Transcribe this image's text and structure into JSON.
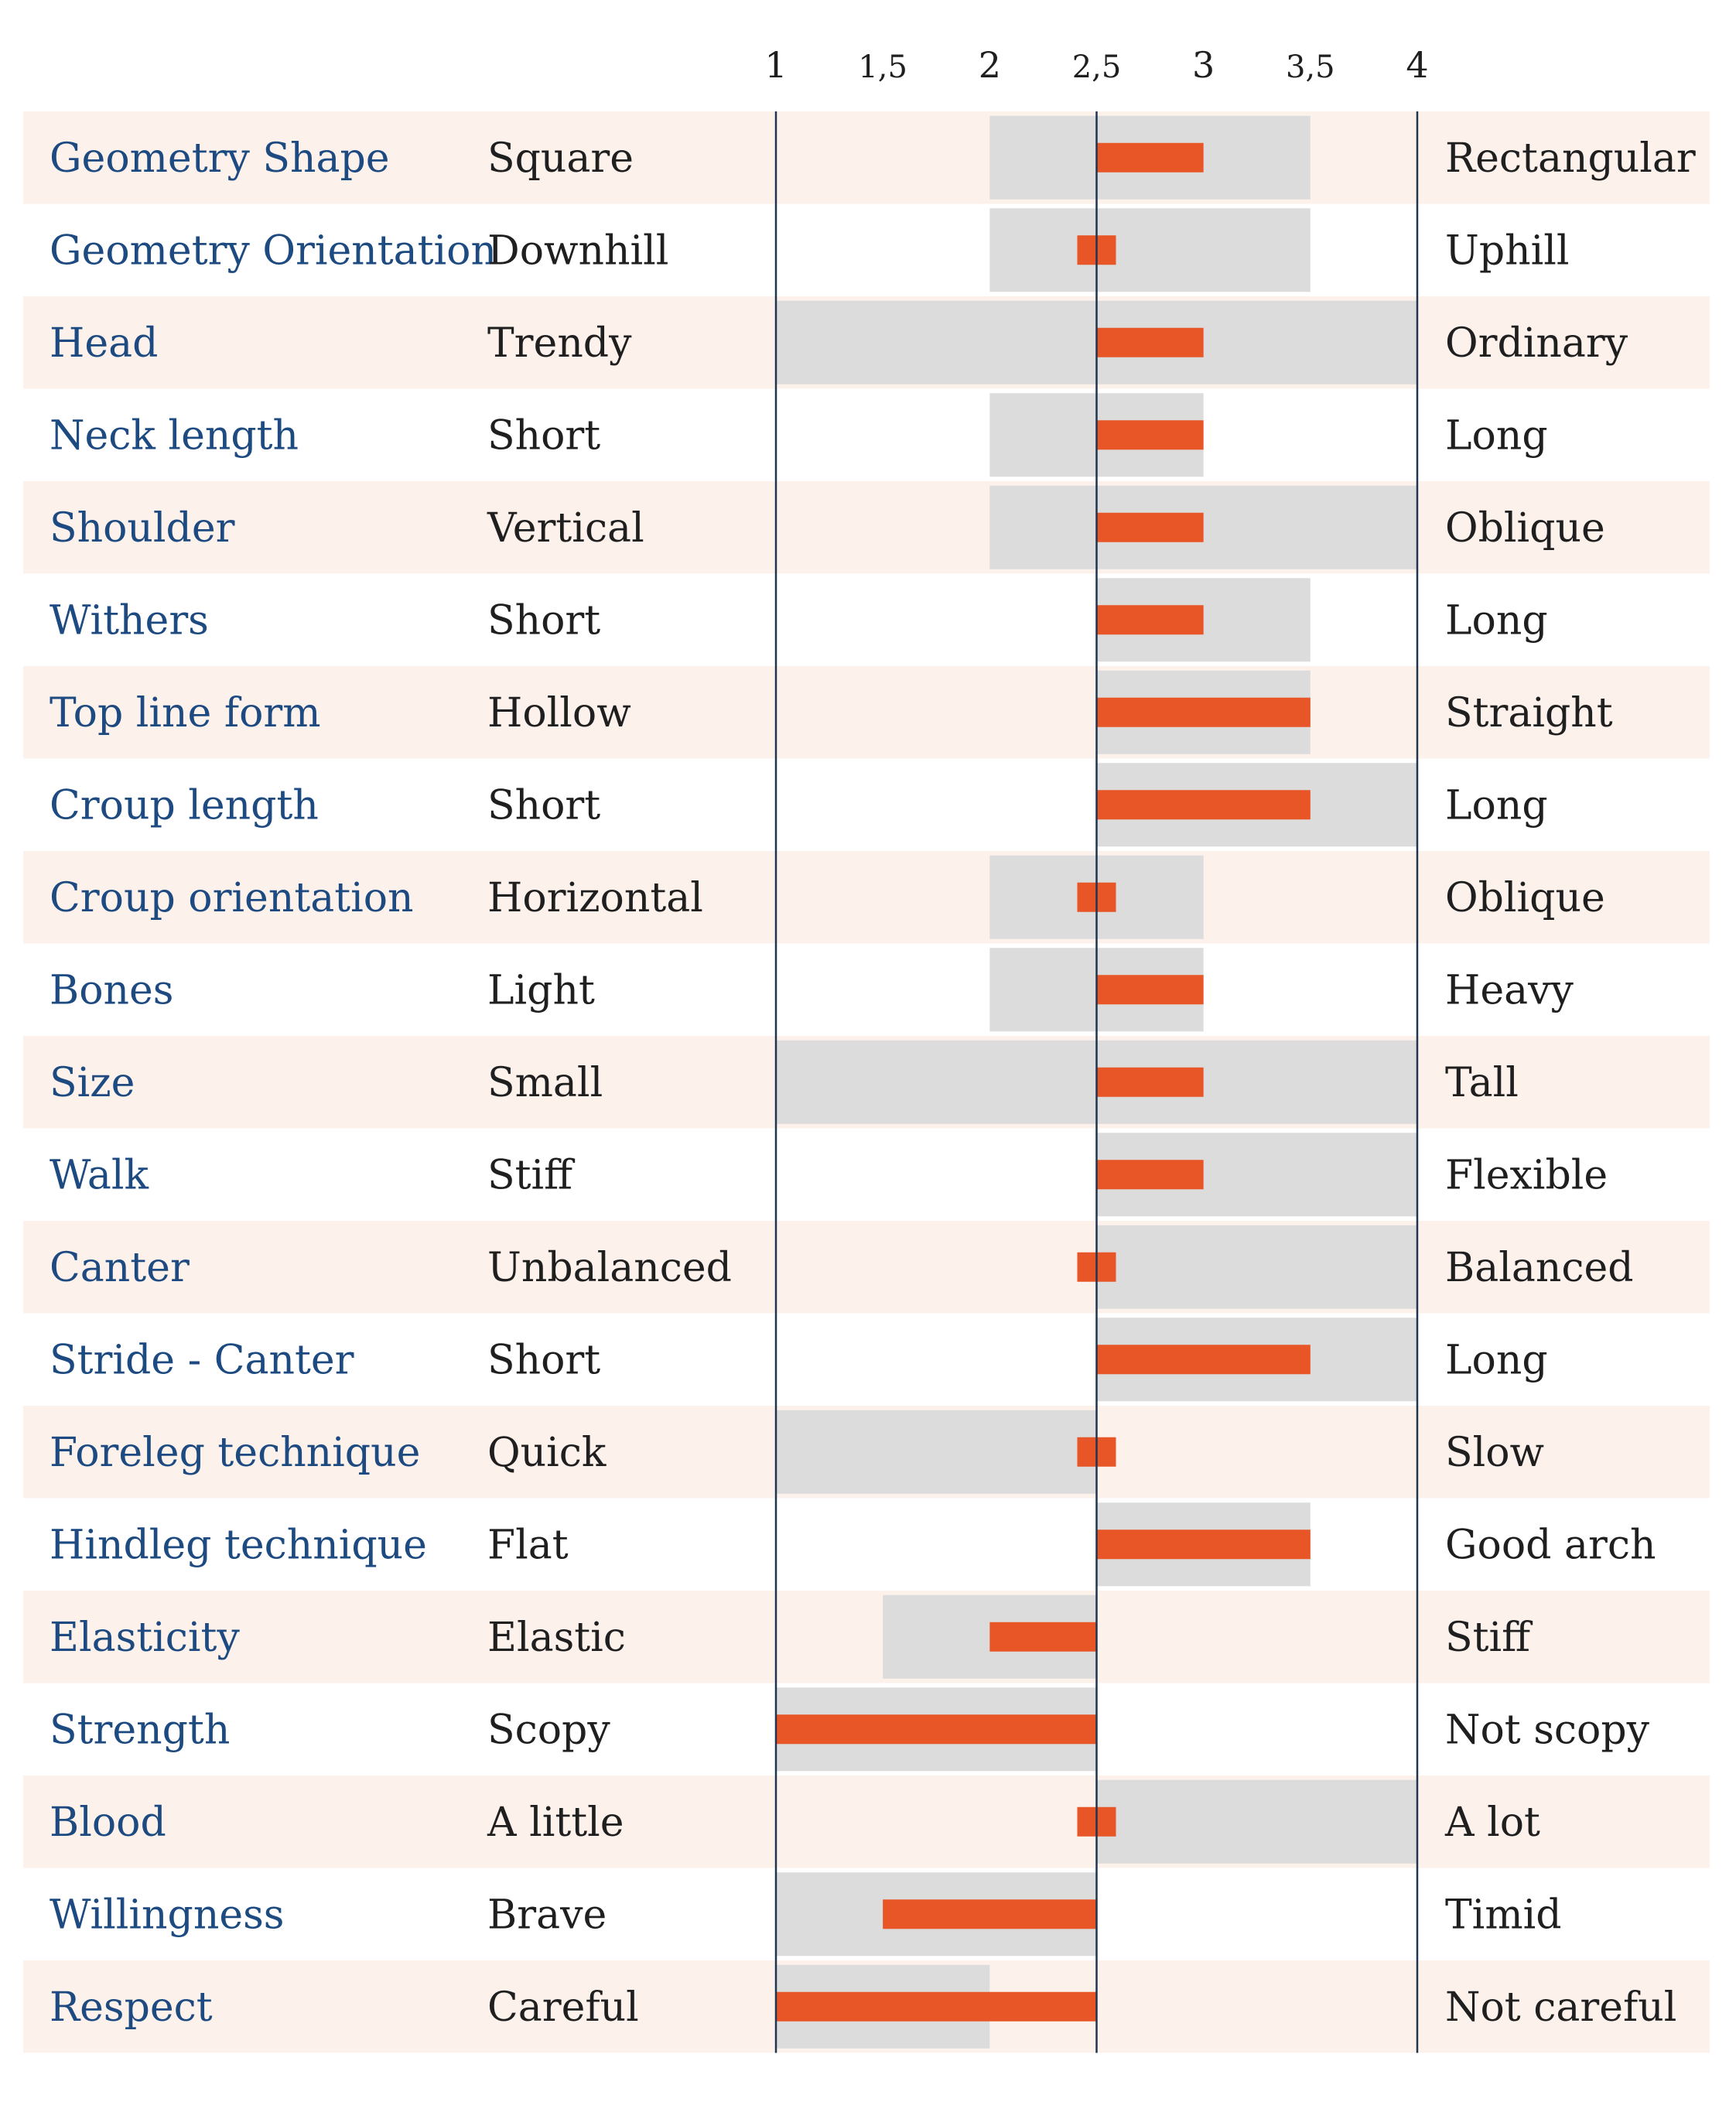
{
  "colors": {
    "band_odd": "#fdf1ec",
    "band_even": "#ffffff",
    "range_fill": "#dcdcdc",
    "bar_fill": "#e85527",
    "axis_line": "#1f3550",
    "name_text": "#1d4a80",
    "body_text": "#1f1f1f"
  },
  "chart_data": {
    "type": "bar",
    "orientation": "horizontal",
    "description_of_encoding": "",
    "axis": {
      "ticks": [
        1,
        1.5,
        2,
        2.5,
        3,
        3.5,
        4
      ],
      "tick_labels": [
        "1",
        "1,5",
        "2",
        "2,5",
        "3",
        "3,5",
        "4"
      ],
      "xlim": [
        1,
        4
      ],
      "reference": 2.5
    },
    "rows": [
      {
        "name": "Geometry Shape",
        "left": "Square",
        "right": "Rectangular",
        "range": [
          2,
          3.5
        ],
        "value": 3
      },
      {
        "name": "Geometry Orientation",
        "left": "Downhill",
        "right": "Uphill",
        "range": [
          2,
          3.5
        ],
        "value": 2.5
      },
      {
        "name": "Head",
        "left": "Trendy",
        "right": "Ordinary",
        "range": [
          1,
          4
        ],
        "value": 3
      },
      {
        "name": "Neck length",
        "left": "Short",
        "right": "Long",
        "range": [
          2,
          3
        ],
        "value": 3
      },
      {
        "name": "Shoulder",
        "left": "Vertical",
        "right": "Oblique",
        "range": [
          2,
          4
        ],
        "value": 3
      },
      {
        "name": "Withers",
        "left": "Short",
        "right": "Long",
        "range": [
          2.5,
          3.5
        ],
        "value": 3
      },
      {
        "name": "Top line form",
        "left": "Hollow",
        "right": "Straight",
        "range": [
          2.5,
          3.5
        ],
        "value": 3.5
      },
      {
        "name": "Croup length",
        "left": "Short",
        "right": "Long",
        "range": [
          2.5,
          4
        ],
        "value": 3.5
      },
      {
        "name": "Croup orientation",
        "left": "Horizontal",
        "right": "Oblique",
        "range": [
          2,
          3
        ],
        "value": 2.5
      },
      {
        "name": "Bones",
        "left": "Light",
        "right": "Heavy",
        "range": [
          2,
          3
        ],
        "value": 3
      },
      {
        "name": "Size",
        "left": "Small",
        "right": "Tall",
        "range": [
          1,
          4
        ],
        "value": 3
      },
      {
        "name": "Walk",
        "left": "Stiff",
        "right": "Flexible",
        "range": [
          2.5,
          4
        ],
        "value": 3
      },
      {
        "name": "Canter",
        "left": "Unbalanced",
        "right": "Balanced",
        "range": [
          2.5,
          4
        ],
        "value": 2.5
      },
      {
        "name": "Stride - Canter",
        "left": "Short",
        "right": "Long",
        "range": [
          2.5,
          4
        ],
        "value": 3.5
      },
      {
        "name": "Foreleg technique",
        "left": "Quick",
        "right": "Slow",
        "range": [
          1,
          2.5
        ],
        "value": 2.5
      },
      {
        "name": "Hindleg technique",
        "left": "Flat",
        "right": "Good arch",
        "range": [
          2.5,
          3.5
        ],
        "value": 3.5
      },
      {
        "name": "Elasticity",
        "left": "Elastic",
        "right": "Stiff",
        "range": [
          1.5,
          2.5
        ],
        "value": 2
      },
      {
        "name": "Strength",
        "left": "Scopy",
        "right": "Not scopy",
        "range": [
          1,
          2.5
        ],
        "value": 1
      },
      {
        "name": "Blood",
        "left": "A little",
        "right": "A lot",
        "range": [
          2.5,
          4
        ],
        "value": 2.5
      },
      {
        "name": "Willingness",
        "left": "Brave",
        "right": "Timid",
        "range": [
          1,
          2.5
        ],
        "value": 1.5
      },
      {
        "name": "Respect",
        "left": "Careful",
        "right": "Not careful",
        "range": [
          1,
          2
        ],
        "value": 1
      }
    ]
  }
}
